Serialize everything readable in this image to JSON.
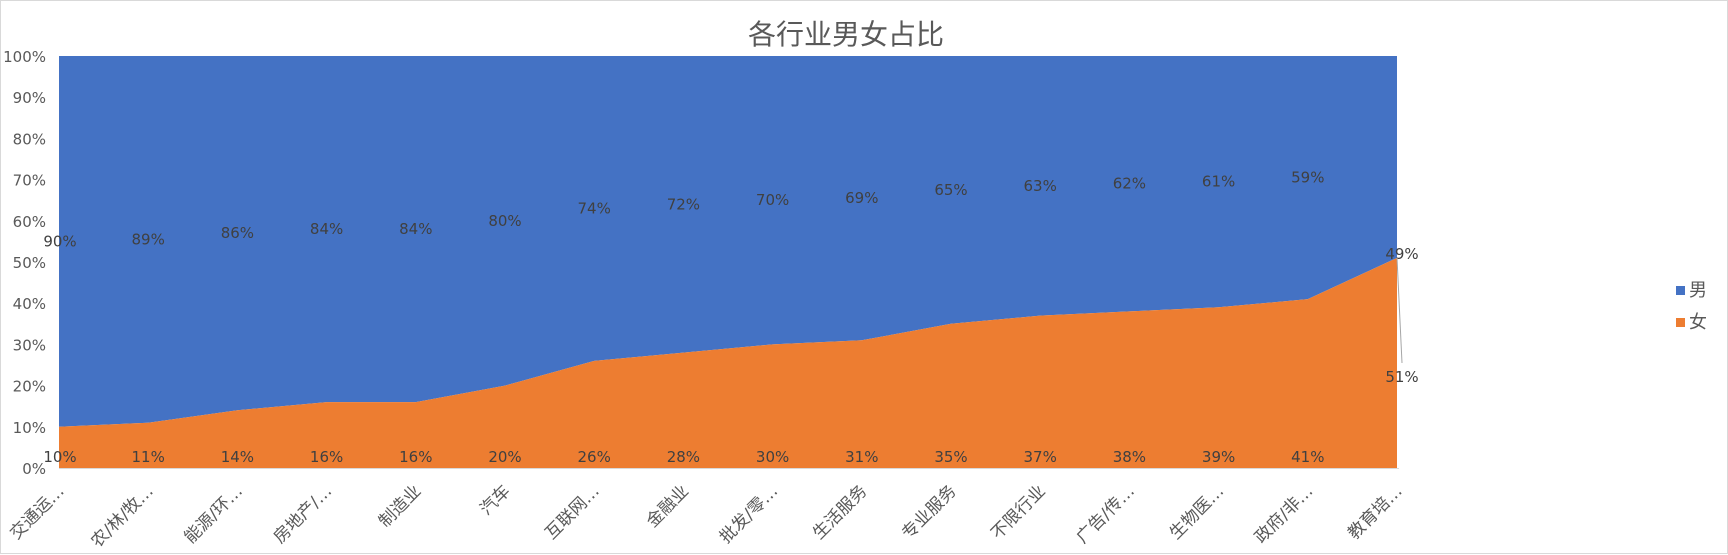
{
  "chart_data": {
    "type": "area",
    "stacked": true,
    "title": "各行业男女占比",
    "categories": [
      "交通运…",
      "农/林/牧…",
      "能源/环…",
      "房地产/…",
      "制造业",
      "汽车",
      "互联网…",
      "金融业",
      "批发/零…",
      "生活服务",
      "专业服务",
      "不限行业",
      "广告/传…",
      "生物医…",
      "政府/非…",
      "教育培…"
    ],
    "series": [
      {
        "name": "女",
        "color": "#ed7d31",
        "values": [
          10,
          11,
          14,
          16,
          16,
          20,
          26,
          28,
          30,
          31,
          35,
          37,
          38,
          39,
          41,
          51
        ],
        "labels": [
          "10%",
          "11%",
          "14%",
          "16%",
          "16%",
          "20%",
          "26%",
          "28%",
          "30%",
          "31%",
          "35%",
          "37%",
          "38%",
          "39%",
          "41%",
          "51%"
        ]
      },
      {
        "name": "男",
        "color": "#4472c4",
        "values": [
          90,
          89,
          86,
          84,
          84,
          80,
          74,
          72,
          70,
          69,
          65,
          63,
          62,
          61,
          59,
          49
        ],
        "labels": [
          "90%",
          "89%",
          "86%",
          "84%",
          "84%",
          "80%",
          "74%",
          "72%",
          "70%",
          "69%",
          "65%",
          "63%",
          "62%",
          "61%",
          "59%",
          "49%"
        ]
      }
    ],
    "y_ticks": [
      "0%",
      "10%",
      "20%",
      "30%",
      "40%",
      "50%",
      "60%",
      "70%",
      "80%",
      "90%",
      "100%"
    ],
    "ylim": [
      0,
      100
    ],
    "legend_position": "right",
    "grid": false
  }
}
